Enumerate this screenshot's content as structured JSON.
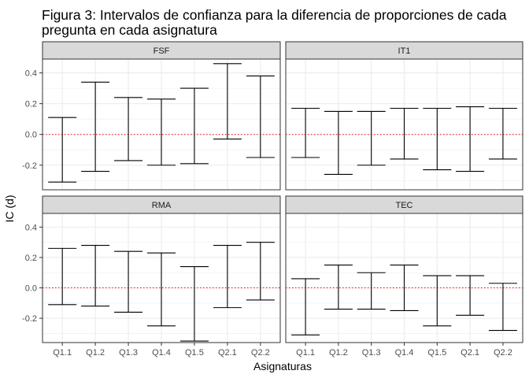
{
  "chart_data": {
    "type": "errorbar",
    "title_lines": [
      "Figura 3: Intervalos de confianza para la diferencia de proporciones de cada",
      "pregunta en cada asignatura"
    ],
    "xlabel": "Asignaturas",
    "ylabel": "IC (d)",
    "categories": [
      "Q1.1",
      "Q1.2",
      "Q1.3",
      "Q1.4",
      "Q1.5",
      "Q2.1",
      "Q2.2"
    ],
    "ylim": [
      -0.36,
      0.49
    ],
    "yticks": [
      -0.2,
      0.0,
      0.2,
      0.4
    ],
    "ytick_labels": [
      "-0.2",
      "0.0",
      "0.2",
      "0.4"
    ],
    "reference_line": {
      "y": 0,
      "style": "dotted",
      "color": "#ff0000"
    },
    "grid": true,
    "colors": {
      "panel_border": "#333333",
      "strip_fill": "#d9d9d9",
      "grid": "#ebebeb",
      "errorbar": "#000000"
    },
    "panels": [
      {
        "name": "FSF",
        "lower": [
          -0.31,
          -0.24,
          -0.17,
          -0.2,
          -0.19,
          -0.03,
          -0.15
        ],
        "upper": [
          0.11,
          0.34,
          0.24,
          0.23,
          0.3,
          0.46,
          0.38
        ]
      },
      {
        "name": "IT1",
        "lower": [
          -0.15,
          -0.26,
          -0.2,
          -0.16,
          -0.23,
          -0.24,
          -0.16
        ],
        "upper": [
          0.17,
          0.15,
          0.15,
          0.17,
          0.17,
          0.18,
          0.17
        ]
      },
      {
        "name": "RMA",
        "lower": [
          -0.11,
          -0.12,
          -0.16,
          -0.25,
          -0.35,
          -0.13,
          -0.08
        ],
        "upper": [
          0.26,
          0.28,
          0.24,
          0.23,
          0.14,
          0.28,
          0.3
        ]
      },
      {
        "name": "TEC",
        "lower": [
          -0.31,
          -0.14,
          -0.14,
          -0.15,
          -0.25,
          -0.18,
          -0.28
        ],
        "upper": [
          0.06,
          0.15,
          0.1,
          0.15,
          0.08,
          0.08,
          0.03
        ]
      }
    ]
  }
}
